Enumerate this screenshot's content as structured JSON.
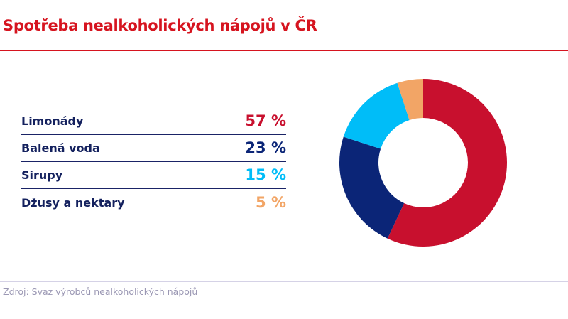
{
  "chart_data": {
    "type": "pie",
    "variant": "donut",
    "title": "Spotřeba nealkoholických nápojů v ČR",
    "categories": [
      "Limonády",
      "Balená voda",
      "Sirupy",
      "Džusy a nektary"
    ],
    "values": [
      57,
      23,
      15,
      5
    ],
    "labels": [
      "57 %",
      "23 %",
      "15 %",
      "5 %"
    ],
    "colors": [
      "#c8102e",
      "#0b2577",
      "#00bdf8",
      "#f2a566"
    ],
    "legend": "left",
    "source": "Zdroj: Svaz výrobců nealkoholických nápojů"
  }
}
